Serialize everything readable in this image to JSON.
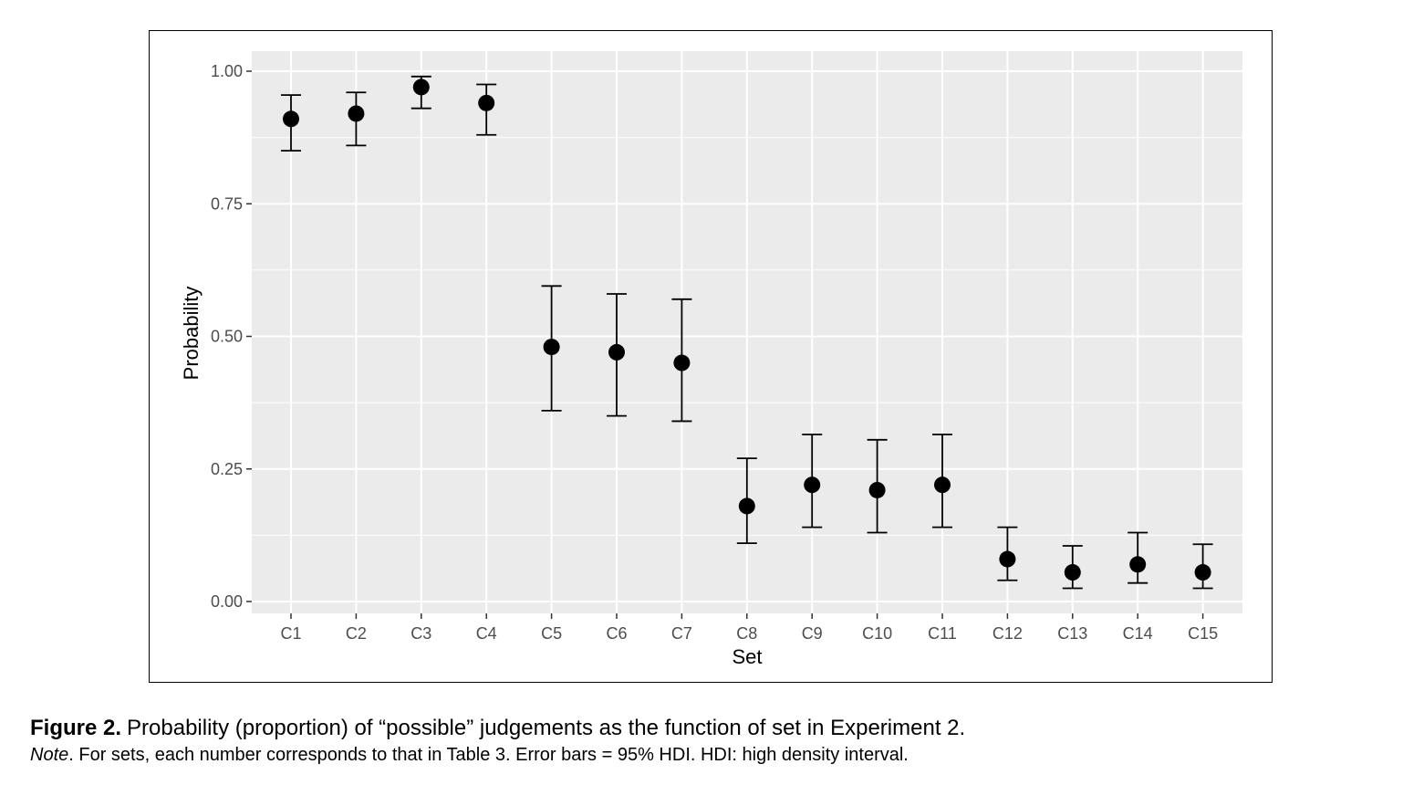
{
  "caption": {
    "label": "Figure 2.",
    "text": "Probability (proportion) of “possible” judgements as the function of set in Experiment 2.",
    "note_label": "Note",
    "note_text": ". For sets, each number corresponds to that in Table 3. Error bars = 95% HDI. HDI: high density interval."
  },
  "chart_data": {
    "type": "scatter",
    "xlabel": "Set",
    "ylabel": "Probability",
    "ylim": [
      0,
      1
    ],
    "yticks": [
      0,
      0.25,
      0.5,
      0.75,
      1
    ],
    "ytick_labels": [
      "0.00",
      "0.25",
      "0.50",
      "0.75",
      "1.00"
    ],
    "grid": true,
    "categories": [
      "C1",
      "C2",
      "C3",
      "C4",
      "C5",
      "C6",
      "C7",
      "C8",
      "C9",
      "C10",
      "C11",
      "C12",
      "C13",
      "C14",
      "C15"
    ],
    "values": [
      0.91,
      0.92,
      0.97,
      0.94,
      0.48,
      0.47,
      0.45,
      0.18,
      0.22,
      0.21,
      0.22,
      0.08,
      0.055,
      0.07,
      0.055
    ],
    "lower": [
      0.85,
      0.86,
      0.93,
      0.88,
      0.36,
      0.35,
      0.34,
      0.11,
      0.14,
      0.13,
      0.14,
      0.04,
      0.025,
      0.035,
      0.025
    ],
    "upper": [
      0.955,
      0.96,
      0.99,
      0.975,
      0.595,
      0.58,
      0.57,
      0.27,
      0.315,
      0.305,
      0.315,
      0.14,
      0.105,
      0.13,
      0.108
    ],
    "colors": {
      "panel": "#ebebeb",
      "grid": "#ffffff",
      "point": "#000000"
    }
  }
}
